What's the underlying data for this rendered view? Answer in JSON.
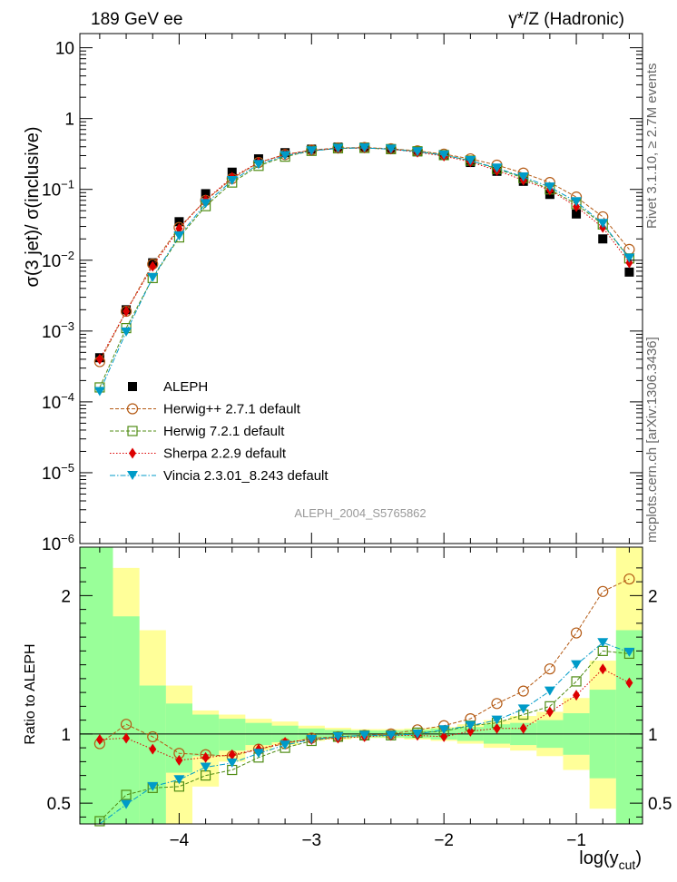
{
  "header": {
    "left_title": "189 GeV ee",
    "right_title": "γ*/Z (Hadronic)"
  },
  "side_labels": {
    "rivet": "Rivet 3.1.10, ≥ 2.7M events",
    "mcplots": "mcplots.cern.ch [arXiv:1306.3436]"
  },
  "watermark": "ALEPH_2004_S5765862",
  "axes": {
    "xlabel": "log(y",
    "xlabel_sub": "cut",
    "xlabel_close": ")",
    "ylabel_top": "σ(3 jet)/ σ(inclusive)",
    "ylabel_ratio": "Ratio to ALEPH",
    "xlim": [
      -4.75,
      -0.5
    ],
    "ylim_top_log10": [
      -6,
      1.2
    ],
    "ylim_ratio": [
      0.35,
      2.35
    ],
    "x_ticks": [
      "−4",
      "−3",
      "−2",
      "−1"
    ],
    "y_top_ticks": [
      "10",
      "1",
      "10^-1",
      "10^-2",
      "10^-3",
      "10^-4",
      "10^-5",
      "10^-6"
    ],
    "y_ratio_ticks": [
      "0.5",
      "1",
      "2"
    ]
  },
  "legend": {
    "entries": [
      "ALEPH",
      "Herwig++ 2.7.1 default",
      "Herwig 7.2.1 default",
      "Sherpa 2.2.9 default",
      "Vincia 2.3.01_8.243 default"
    ]
  },
  "chart_data": {
    "type": "scatter",
    "x": [
      -4.6,
      -4.4,
      -4.2,
      -4.0,
      -3.8,
      -3.6,
      -3.4,
      -3.2,
      -3.0,
      -2.8,
      -2.6,
      -2.4,
      -2.2,
      -2.0,
      -1.8,
      -1.6,
      -1.4,
      -1.2,
      -1.0,
      -0.8,
      -0.6
    ],
    "series": [
      {
        "name": "ALEPH",
        "color": "#000000",
        "values": [
          0.00042,
          0.002,
          0.0092,
          0.035,
          0.087,
          0.175,
          0.27,
          0.33,
          0.37,
          0.395,
          0.395,
          0.375,
          0.34,
          0.3,
          0.24,
          0.18,
          0.13,
          0.085,
          0.045,
          0.02,
          0.0068
        ]
      },
      {
        "name": "Herwig++ 2.7.1 default",
        "color": "#b45a14",
        "values": [
          0.00037,
          0.0019,
          0.0088,
          0.029,
          0.07,
          0.142,
          0.24,
          0.31,
          0.36,
          0.385,
          0.39,
          0.375,
          0.35,
          0.315,
          0.27,
          0.22,
          0.17,
          0.125,
          0.078,
          0.041,
          0.0142
        ],
        "ratio": [
          0.93,
          1.07,
          0.98,
          0.86,
          0.85,
          0.84,
          0.89,
          0.93,
          0.97,
          0.98,
          0.99,
          1.0,
          1.03,
          1.06,
          1.11,
          1.22,
          1.31,
          1.47,
          1.73,
          2.03,
          2.12
        ]
      },
      {
        "name": "Herwig 7.2.1 default",
        "color": "#508c14",
        "values": [
          0.00016,
          0.0011,
          0.0056,
          0.021,
          0.058,
          0.125,
          0.215,
          0.29,
          0.35,
          0.38,
          0.385,
          0.37,
          0.345,
          0.305,
          0.255,
          0.195,
          0.145,
          0.1,
          0.062,
          0.032,
          0.0106
        ],
        "ratio": [
          0.37,
          0.56,
          0.61,
          0.62,
          0.7,
          0.74,
          0.83,
          0.9,
          0.95,
          0.98,
          0.99,
          0.99,
          1.01,
          1.02,
          1.06,
          1.08,
          1.14,
          1.2,
          1.38,
          1.6,
          1.58
        ]
      },
      {
        "name": "Sherpa 2.2.9 default",
        "color": "#dc0000",
        "values": [
          0.0004,
          0.0019,
          0.0082,
          0.028,
          0.071,
          0.148,
          0.24,
          0.31,
          0.355,
          0.38,
          0.385,
          0.37,
          0.335,
          0.295,
          0.245,
          0.185,
          0.135,
          0.098,
          0.057,
          0.029,
          0.0092
        ],
        "ratio": [
          0.96,
          0.97,
          0.89,
          0.81,
          0.83,
          0.85,
          0.89,
          0.94,
          0.96,
          0.97,
          0.98,
          0.99,
          0.99,
          0.98,
          1.02,
          1.04,
          1.04,
          1.16,
          1.28,
          1.47,
          1.37
        ]
      },
      {
        "name": "Vincia 2.3.01_8.243 default",
        "color": "#009bc8",
        "values": [
          0.00014,
          0.00097,
          0.0057,
          0.022,
          0.063,
          0.133,
          0.225,
          0.3,
          0.35,
          0.38,
          0.385,
          0.37,
          0.34,
          0.305,
          0.255,
          0.2,
          0.15,
          0.108,
          0.067,
          0.033,
          0.0107
        ],
        "ratio": [
          0.33,
          0.49,
          0.62,
          0.67,
          0.76,
          0.79,
          0.86,
          0.92,
          0.96,
          0.98,
          0.99,
          0.99,
          1.0,
          1.03,
          1.06,
          1.1,
          1.18,
          1.31,
          1.5,
          1.66,
          1.59
        ]
      }
    ],
    "data_band_bins": [
      -4.75,
      -4.5,
      -4.3,
      -4.1,
      -3.9,
      -3.7,
      -3.5,
      -3.3,
      -3.1,
      -2.9,
      -2.7,
      -2.5,
      -2.3,
      -2.1,
      -1.9,
      -1.7,
      -1.5,
      -1.3,
      -1.1,
      -0.9,
      -0.7,
      -0.5
    ],
    "data_band_inner": [
      [
        0.35,
        2.35
      ],
      [
        0.35,
        1.85
      ],
      [
        0.35,
        1.35
      ],
      [
        0.72,
        1.22
      ],
      [
        0.84,
        1.14
      ],
      [
        0.88,
        1.11
      ],
      [
        0.92,
        1.08
      ],
      [
        0.94,
        1.06
      ],
      [
        0.96,
        1.04
      ],
      [
        0.97,
        1.03
      ],
      [
        0.975,
        1.025
      ],
      [
        0.975,
        1.025
      ],
      [
        0.97,
        1.03
      ],
      [
        0.96,
        1.04
      ],
      [
        0.95,
        1.05
      ],
      [
        0.93,
        1.07
      ],
      [
        0.92,
        1.08
      ],
      [
        0.9,
        1.1
      ],
      [
        0.85,
        1.15
      ],
      [
        0.68,
        1.32
      ],
      [
        0.35,
        1.75
      ]
    ],
    "data_band_outer": [
      [
        0.35,
        2.35
      ],
      [
        0.35,
        2.2
      ],
      [
        0.35,
        1.75
      ],
      [
        0.35,
        1.35
      ],
      [
        0.62,
        1.17
      ],
      [
        0.8,
        1.14
      ],
      [
        0.88,
        1.11
      ],
      [
        0.92,
        1.09
      ],
      [
        0.95,
        1.06
      ],
      [
        0.96,
        1.045
      ],
      [
        0.97,
        1.035
      ],
      [
        0.97,
        1.035
      ],
      [
        0.96,
        1.04
      ],
      [
        0.95,
        1.05
      ],
      [
        0.93,
        1.07
      ],
      [
        0.9,
        1.1
      ],
      [
        0.88,
        1.13
      ],
      [
        0.84,
        1.16
      ],
      [
        0.74,
        1.26
      ],
      [
        0.46,
        1.53
      ],
      [
        0.35,
        2.35
      ]
    ]
  }
}
